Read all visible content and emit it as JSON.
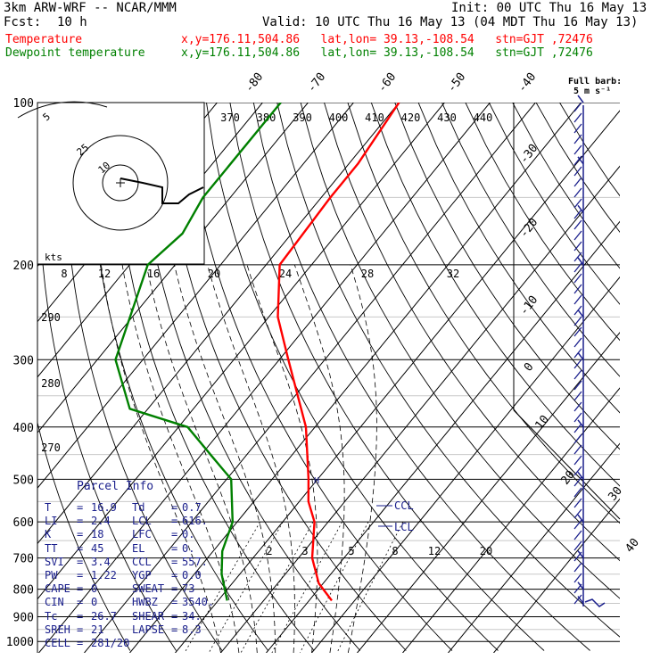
{
  "header": {
    "model": "3km ARW-WRF -- NCAR/MMM",
    "init": "Init: 00 UTC Thu 16 May 13",
    "fcst_label": "Fcst:",
    "fcst_value": "10 h",
    "valid": "Valid: 10 UTC Thu 16 May 13 (04 MDT Thu 16 May 13)",
    "temp_label": "Temperature",
    "dew_label": "Dewpoint temperature",
    "temp_info": "x,y=176.11,504.86   lat,lon= 39.13,-108.54   stn=GJT ,72476",
    "dew_info": "x,y=176.11,504.86   lat,lon= 39.13,-108.54   stn=GJT ,72476",
    "barb_title": "Full barb:",
    "barb_unit": "5 m s⁻¹",
    "colors": {
      "temperature": "#ff0000",
      "dewpoint": "#008000",
      "panel_text": "#1a1f8c",
      "wind": "#1a1f8c"
    }
  },
  "chart_data": {
    "type": "line",
    "diagram": "skew-T log-P",
    "pressure_axis_labels": [
      "100",
      "200",
      "300",
      "400",
      "500",
      "600",
      "700",
      "800",
      "900",
      "1000"
    ],
    "isotherm_labels": [
      "-80",
      "-70",
      "-60",
      "-50",
      "-40",
      "-30",
      "-20",
      "-10",
      "0",
      "10",
      "20",
      "30",
      "40"
    ],
    "theta_labels": [
      "370",
      "380",
      "390",
      "400",
      "410",
      "420",
      "430",
      "440"
    ],
    "theta_side_labels": [
      "290",
      "280",
      "270"
    ],
    "mixing_ratio_top_labels": [
      "8",
      "12",
      "16",
      "20",
      "24",
      "28",
      "32"
    ],
    "mixing_ratio_bottom_labels": [
      "2",
      "3",
      "5",
      "8",
      "12",
      "20"
    ],
    "hodograph": {
      "kts_label": "kts",
      "ring_labels": [
        "5",
        "25",
        "10"
      ]
    },
    "series": [
      {
        "name": "Temperature",
        "color": "#ff0000",
        "points": [
          [
            100,
            -60
          ],
          [
            130,
            -58
          ],
          [
            150,
            -58
          ],
          [
            200,
            -57
          ],
          [
            250,
            -48
          ],
          [
            300,
            -38
          ],
          [
            400,
            -22
          ],
          [
            500,
            -12
          ],
          [
            550,
            -8
          ],
          [
            600,
            -3
          ],
          [
            700,
            3
          ],
          [
            780,
            9
          ],
          [
            840,
            15
          ]
        ]
      },
      {
        "name": "Dewpoint temperature",
        "color": "#008000",
        "points": [
          [
            100,
            -86
          ],
          [
            150,
            -86
          ],
          [
            175,
            -84
          ],
          [
            200,
            -86
          ],
          [
            300,
            -76
          ],
          [
            370,
            -64
          ],
          [
            400,
            -48
          ],
          [
            450,
            -38
          ],
          [
            500,
            -29
          ],
          [
            600,
            -21
          ],
          [
            680,
            -18
          ],
          [
            750,
            -14
          ],
          [
            840,
            -8
          ]
        ]
      }
    ],
    "annotations": [
      "CCL",
      "LCL"
    ],
    "wind_barbs_pressures": [
      100,
      130,
      160,
      200,
      250,
      300,
      400,
      500,
      600,
      700,
      800,
      850
    ]
  },
  "parcel_info": {
    "title": "Parcel Info",
    "rows": [
      [
        "T",
        "=",
        "16.9",
        "Td",
        "=",
        "0.7"
      ],
      [
        "LI",
        "=",
        "2.4",
        "LCL",
        "=",
        "616."
      ],
      [
        "K",
        "=",
        "18",
        "LFC",
        "=",
        "0."
      ],
      [
        "TT",
        "=",
        "45",
        "EL",
        "=",
        "0."
      ],
      [
        "SVI",
        "=",
        "3.4",
        "CCL",
        "=",
        "557."
      ],
      [
        "PW",
        "=",
        "1.22",
        "YGP",
        "=",
        "0.0"
      ],
      [
        "CAPE",
        "=",
        "0",
        "SWEAT",
        "=",
        "73"
      ],
      [
        "CIN",
        "=",
        "0",
        "HWBZ",
        "=",
        "3540."
      ],
      [
        "Tc",
        "=",
        "26.7",
        "SHEAR",
        "=",
        "34."
      ],
      [
        "SREH",
        "=",
        "21",
        "LAPSE",
        "=",
        "8.3"
      ],
      [
        "CELL",
        "=",
        "281/20",
        "",
        "",
        ""
      ]
    ]
  }
}
